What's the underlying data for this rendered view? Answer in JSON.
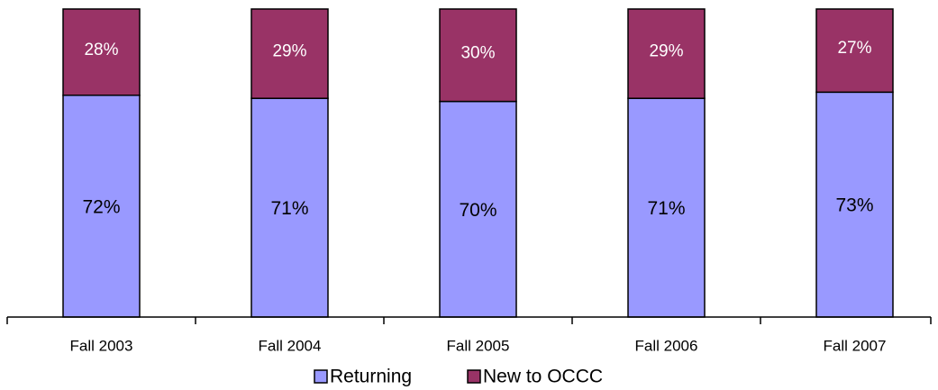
{
  "chart_data": {
    "type": "bar",
    "stacked": true,
    "categories": [
      "Fall 2003",
      "Fall 2004",
      "Fall 2005",
      "Fall 2006",
      "Fall 2007"
    ],
    "series": [
      {
        "name": "Returning",
        "color": "#9999ff",
        "values": [
          72,
          71,
          70,
          71,
          73
        ],
        "value_labels": [
          "72%",
          "71%",
          "70%",
          "71%",
          "73%"
        ]
      },
      {
        "name": "New to OCCC",
        "color": "#993366",
        "values": [
          28,
          29,
          30,
          29,
          27
        ],
        "value_labels": [
          "28%",
          "29%",
          "30%",
          "29%",
          "27%"
        ]
      }
    ],
    "ylim": [
      0,
      100
    ],
    "legend": "bottom"
  }
}
